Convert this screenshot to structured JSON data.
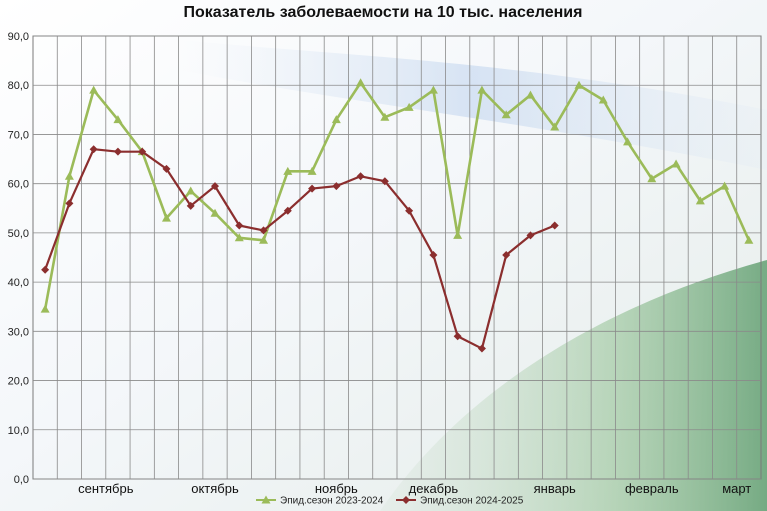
{
  "chart_data": {
    "type": "line",
    "title": "Показатель заболеваемости на 10 тыс. населения",
    "xlabel": "",
    "ylabel": "",
    "ylim": [
      0,
      90
    ],
    "y_ticks": [
      "0,0",
      "10,0",
      "20,0",
      "30,0",
      "40,0",
      "50,0",
      "60,0",
      "70,0",
      "80,0",
      "90,0"
    ],
    "grid": true,
    "legend_position": "bottom",
    "week_count": 30,
    "months": [
      {
        "label": "сентябрь",
        "at": 3
      },
      {
        "label": "октябрь",
        "at": 7.5
      },
      {
        "label": "ноябрь",
        "at": 12.5
      },
      {
        "label": "декабрь",
        "at": 16.5
      },
      {
        "label": "январь",
        "at": 21.5
      },
      {
        "label": "февраль",
        "at": 25.5
      },
      {
        "label": "март",
        "at": 29
      }
    ],
    "series": [
      {
        "name": "Эпид.сезон 2023-2024",
        "color": "#9bbb59",
        "marker": "triangle",
        "x": [
          0,
          1,
          2,
          3,
          4,
          5,
          6,
          7,
          8,
          9,
          10,
          11,
          12,
          13,
          14,
          15,
          16,
          17,
          18,
          19,
          20,
          21,
          22,
          23,
          24,
          25,
          26,
          27,
          28,
          29,
          30
        ],
        "values": [
          34.5,
          61.5,
          79.0,
          73.0,
          66.5,
          53.0,
          58.5,
          54.0,
          49.0,
          48.5,
          62.5,
          62.5,
          73.0,
          80.5,
          73.5,
          75.5,
          79.0,
          49.5,
          79.0,
          74.0,
          78.0,
          71.5,
          80.0,
          77.0,
          68.5,
          61.0,
          64.0,
          56.5,
          59.5,
          48.5,
          null
        ]
      },
      {
        "name": "Эпид.сезон 2024-2025",
        "color": "#8b2e2e",
        "marker": "diamond",
        "x": [
          0,
          1,
          2,
          3,
          4,
          5,
          6,
          7,
          8,
          9,
          10,
          11,
          12,
          13,
          14,
          15,
          16,
          17,
          18,
          19,
          20,
          21
        ],
        "values": [
          42.5,
          56.0,
          67.0,
          66.5,
          66.5,
          63.0,
          55.5,
          59.5,
          51.5,
          50.5,
          54.5,
          59.0,
          59.5,
          61.5,
          60.5,
          54.5,
          45.5,
          29.0,
          26.5,
          45.5,
          49.5,
          51.5
        ]
      }
    ]
  }
}
